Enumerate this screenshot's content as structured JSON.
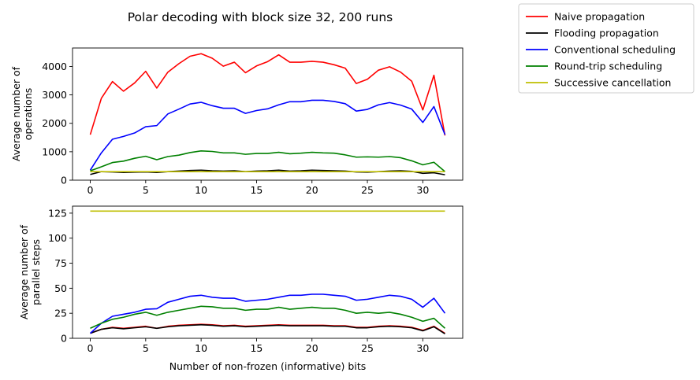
{
  "chart_data": [
    {
      "type": "line",
      "title": "Polar decoding with block size 32, 200 runs",
      "xlabel": "",
      "ylabel": "Average number of\noperations",
      "xlim": [
        -1.6,
        33.6
      ],
      "ylim": [
        0,
        4650
      ],
      "x_ticks": [
        0,
        5,
        10,
        15,
        20,
        25,
        30
      ],
      "y_ticks": [
        0,
        1000,
        2000,
        3000,
        4000
      ],
      "x": [
        0,
        1,
        2,
        3,
        4,
        5,
        6,
        7,
        8,
        9,
        10,
        11,
        12,
        13,
        14,
        15,
        16,
        17,
        18,
        19,
        20,
        21,
        22,
        23,
        24,
        25,
        26,
        27,
        28,
        29,
        30,
        31,
        32
      ],
      "grid": false,
      "series": [
        {
          "name": "Naive propagation",
          "color": "#ff0000",
          "values": [
            1600,
            2880,
            3470,
            3130,
            3420,
            3830,
            3240,
            3800,
            4100,
            4360,
            4450,
            4290,
            4010,
            4150,
            3780,
            4020,
            4170,
            4410,
            4150,
            4150,
            4180,
            4150,
            4060,
            3940,
            3400,
            3550,
            3870,
            3990,
            3800,
            3480,
            2470,
            3690,
            1570
          ]
        },
        {
          "name": "Flooding propagation",
          "color": "#000000",
          "values": [
            200,
            300,
            290,
            270,
            280,
            290,
            270,
            300,
            320,
            340,
            350,
            330,
            320,
            330,
            300,
            320,
            330,
            350,
            320,
            330,
            350,
            340,
            330,
            320,
            290,
            280,
            300,
            320,
            330,
            310,
            240,
            260,
            190
          ]
        },
        {
          "name": "Conventional scheduling",
          "color": "#0000ff",
          "values": [
            350,
            960,
            1440,
            1540,
            1660,
            1880,
            1920,
            2330,
            2500,
            2680,
            2740,
            2620,
            2530,
            2530,
            2350,
            2450,
            2510,
            2650,
            2760,
            2760,
            2810,
            2810,
            2770,
            2690,
            2430,
            2490,
            2650,
            2730,
            2640,
            2500,
            2030,
            2590,
            1600
          ]
        },
        {
          "name": "Round-trip scheduling",
          "color": "#008000",
          "values": [
            330,
            470,
            620,
            670,
            770,
            840,
            720,
            830,
            880,
            970,
            1030,
            1010,
            960,
            960,
            910,
            940,
            940,
            980,
            930,
            950,
            980,
            960,
            950,
            890,
            810,
            820,
            810,
            830,
            790,
            680,
            540,
            630,
            300
          ]
        },
        {
          "name": "Successive cancellation",
          "color": "#bfbf00",
          "values": [
            300,
            300,
            300,
            300,
            300,
            300,
            300,
            300,
            300,
            300,
            300,
            300,
            300,
            300,
            300,
            300,
            300,
            300,
            300,
            300,
            300,
            300,
            300,
            300,
            300,
            300,
            300,
            300,
            300,
            300,
            300,
            300,
            300
          ]
        }
      ]
    },
    {
      "type": "line",
      "title": "",
      "xlabel": "Number of non-frozen (informative) bits",
      "ylabel": "Average number of\nparallel steps",
      "xlim": [
        -1.6,
        33.6
      ],
      "ylim": [
        0,
        132
      ],
      "x_ticks": [
        0,
        5,
        10,
        15,
        20,
        25,
        30
      ],
      "y_ticks": [
        0,
        25,
        50,
        75,
        100,
        125
      ],
      "x": [
        0,
        1,
        2,
        3,
        4,
        5,
        6,
        7,
        8,
        9,
        10,
        11,
        12,
        13,
        14,
        15,
        16,
        17,
        18,
        19,
        20,
        21,
        22,
        23,
        24,
        25,
        26,
        27,
        28,
        29,
        30,
        31,
        32
      ],
      "grid": false,
      "series": [
        {
          "name": "Naive propagation",
          "color": "#ff0000",
          "values": [
            5,
            9,
            11,
            10,
            11,
            12,
            10,
            12,
            13,
            13.5,
            14,
            13.5,
            12.5,
            13,
            12,
            12.5,
            13,
            13.5,
            13,
            13,
            13,
            13,
            12.5,
            12.5,
            11,
            11,
            12,
            12.5,
            12,
            11,
            8,
            12,
            5
          ]
        },
        {
          "name": "Flooding propagation",
          "color": "#000000",
          "values": [
            5,
            9,
            10.5,
            9.5,
            10.5,
            11.5,
            10,
            11.5,
            12.5,
            13,
            13.5,
            13,
            12,
            12.5,
            11.5,
            12,
            12.5,
            13,
            12.5,
            12.5,
            12.5,
            12.5,
            12,
            12,
            10.5,
            10.5,
            11.5,
            12,
            11.5,
            10.5,
            7.5,
            11.5,
            4.5
          ]
        },
        {
          "name": "Conventional scheduling",
          "color": "#0000ff",
          "values": [
            5,
            15,
            22,
            24,
            26,
            29,
            29.5,
            36,
            39,
            42,
            43,
            41,
            40,
            40,
            37,
            38,
            39,
            41,
            43,
            43,
            44,
            44,
            43,
            42,
            38,
            39,
            41,
            43,
            42,
            39,
            31,
            40,
            25
          ]
        },
        {
          "name": "Round-trip scheduling",
          "color": "#008000",
          "values": [
            10,
            15,
            19,
            21,
            24,
            26,
            23,
            26,
            28,
            30,
            32,
            31.5,
            30,
            30,
            28,
            29,
            29,
            31,
            29,
            30,
            31,
            30,
            30,
            28,
            25,
            26,
            25,
            26,
            24,
            21,
            17,
            20,
            10
          ]
        },
        {
          "name": "Successive cancellation",
          "color": "#bfbf00",
          "values": [
            127,
            127,
            127,
            127,
            127,
            127,
            127,
            127,
            127,
            127,
            127,
            127,
            127,
            127,
            127,
            127,
            127,
            127,
            127,
            127,
            127,
            127,
            127,
            127,
            127,
            127,
            127,
            127,
            127,
            127,
            127,
            127,
            127
          ]
        }
      ]
    }
  ],
  "legend": {
    "placement": "top-right, outside plots",
    "entries": [
      "Naive propagation",
      "Flooding propagation",
      "Conventional scheduling",
      "Round-trip scheduling",
      "Successive cancellation"
    ]
  }
}
